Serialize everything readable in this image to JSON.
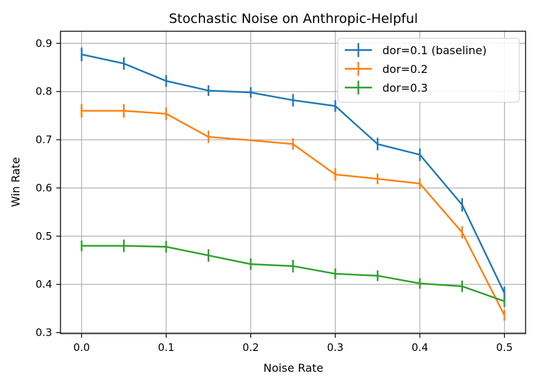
{
  "chart_data": {
    "type": "line",
    "title": "Stochastic Noise on Anthropic-Helpful",
    "xlabel": "Noise Rate",
    "ylabel": "Win Rate",
    "xlim": [
      -0.025,
      0.525
    ],
    "ylim": [
      0.298,
      0.925
    ],
    "xticks": [
      0.0,
      0.1,
      0.2,
      0.3,
      0.4,
      0.5
    ],
    "yticks": [
      0.3,
      0.4,
      0.5,
      0.6,
      0.7,
      0.8,
      0.9
    ],
    "xtick_labels": [
      "0.0",
      "0.1",
      "0.2",
      "0.3",
      "0.4",
      "0.5"
    ],
    "ytick_labels": [
      "0.3",
      "0.4",
      "0.5",
      "0.6",
      "0.7",
      "0.8",
      "0.9"
    ],
    "grid": true,
    "legend_position": "top-right",
    "error_bars": true,
    "x": [
      0.0,
      0.05,
      0.1,
      0.15,
      0.2,
      0.25,
      0.3,
      0.35,
      0.4,
      0.45,
      0.5
    ],
    "series": [
      {
        "name": "dor=0.1 (baseline)",
        "color": "#1f77b4",
        "values": [
          0.877,
          0.858,
          0.822,
          0.802,
          0.798,
          0.782,
          0.77,
          0.691,
          0.669,
          0.565,
          0.382
        ],
        "errors": [
          0.014,
          0.013,
          0.012,
          0.011,
          0.011,
          0.013,
          0.012,
          0.013,
          0.013,
          0.014,
          0.013
        ]
      },
      {
        "name": "dor=0.2",
        "color": "#ff7f0e",
        "values": [
          0.76,
          0.76,
          0.754,
          0.706,
          0.699,
          0.691,
          0.628,
          0.619,
          0.609,
          0.508,
          0.336
        ],
        "errors": [
          0.014,
          0.014,
          0.013,
          0.013,
          0.0,
          0.012,
          0.013,
          0.011,
          0.011,
          0.013,
          0.011
        ]
      },
      {
        "name": "dor=0.3",
        "color": "#2ca02c",
        "values": [
          0.48,
          0.48,
          0.478,
          0.46,
          0.442,
          0.438,
          0.422,
          0.418,
          0.402,
          0.396,
          0.365
        ],
        "errors": [
          0.011,
          0.013,
          0.012,
          0.013,
          0.012,
          0.013,
          0.011,
          0.011,
          0.011,
          0.012,
          0.012
        ]
      }
    ]
  }
}
